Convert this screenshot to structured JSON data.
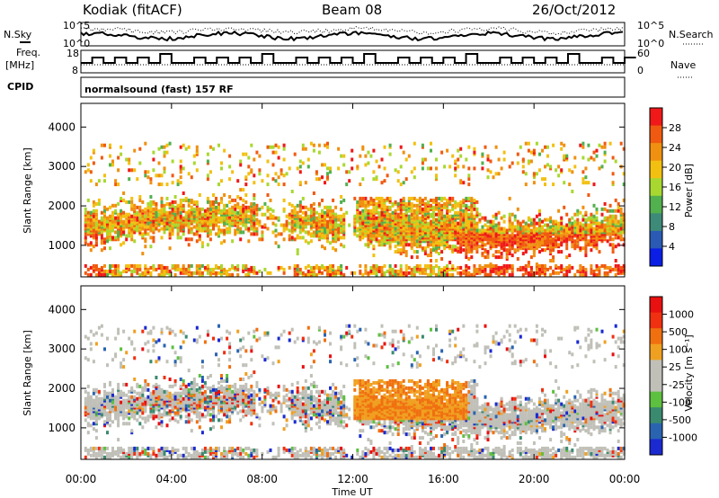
{
  "header": {
    "station": "Kodiak (fitACF)",
    "beam": "Beam 08",
    "date": "26/Oct/2012"
  },
  "top_panel": {
    "left_label_1": "N.Sky",
    "left_label_2": "Freq.",
    "left_label_3": "[MHz]",
    "left_label_4": "CPID",
    "right_label_1": "N.Search",
    "right_label_2": "Nave",
    "nsky_ticks": [
      "10^5",
      "10^0"
    ],
    "nsearch_ticks": [
      "10^5",
      "10^0"
    ],
    "freq_ticks": [
      "18",
      "8"
    ],
    "nave_ticks": [
      "60",
      "0"
    ],
    "cpid_text": "normalsound (fast) 157 RF"
  },
  "chart_data": [
    {
      "type": "heatmap",
      "title": "",
      "quantity": "Power",
      "xlabel": "",
      "ylabel": "Slant Range [km]",
      "x_ticks": [
        "00:00",
        "04:00",
        "08:00",
        "12:00",
        "16:00",
        "20:00",
        "00:00"
      ],
      "x_hours": [
        0,
        4,
        8,
        12,
        16,
        20,
        24
      ],
      "xlim_hours": [
        0,
        24
      ],
      "y_ticks": [
        1000,
        2000,
        3000,
        4000
      ],
      "ylim": [
        200,
        4600
      ],
      "colorbar_label": "Power [dB]",
      "colorbar_ticks": [
        "4",
        "8",
        "12",
        "16",
        "20",
        "24",
        "28"
      ],
      "colorbar_colors": [
        "#0a1ee6",
        "#2a5ab4",
        "#3e8a78",
        "#52b04e",
        "#a8d830",
        "#f2c010",
        "#f09010",
        "#f05a10",
        "#f01818"
      ]
    },
    {
      "type": "heatmap",
      "title": "",
      "quantity": "Velocity",
      "xlabel": "Time UT",
      "ylabel": "Slant Range [km]",
      "x_ticks": [
        "00:00",
        "04:00",
        "08:00",
        "12:00",
        "16:00",
        "20:00",
        "00:00"
      ],
      "x_hours": [
        0,
        4,
        8,
        12,
        16,
        20,
        24
      ],
      "xlim_hours": [
        0,
        24
      ],
      "y_ticks": [
        1000,
        2000,
        3000,
        4000
      ],
      "ylim": [
        200,
        4600
      ],
      "colorbar_label": "Velocity [m s⁻¹]",
      "colorbar_ticks": [
        "1000",
        "500",
        "100",
        "25",
        "-25",
        "-100",
        "-500",
        "-1000"
      ],
      "colorbar_colors": [
        "#1a2ad0",
        "#2a64b0",
        "#3a8a70",
        "#5ec040",
        "#c0c0b8",
        "#c0c0b8",
        "#f0a020",
        "#f07010",
        "#f03010",
        "#e81010"
      ]
    }
  ]
}
